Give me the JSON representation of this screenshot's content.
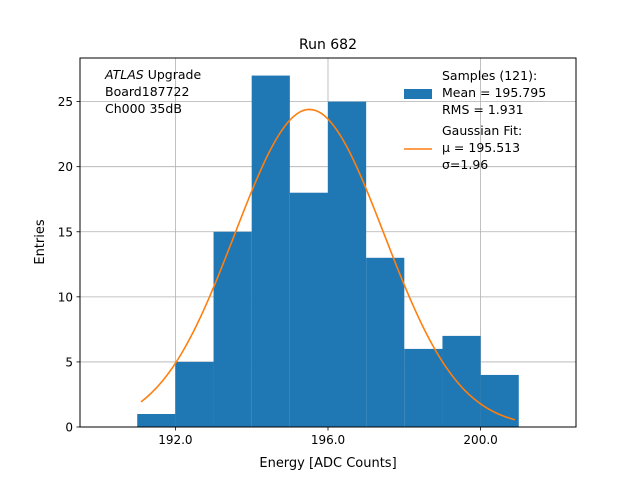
{
  "chart_data": {
    "type": "bar",
    "title": "Run 682",
    "xlabel": "Energy [ADC Counts]",
    "ylabel": "Entries",
    "xlim": [
      189.5,
      202.5
    ],
    "ylim": [
      0,
      28.35
    ],
    "grid": true,
    "xticks": [
      192.0,
      196.0,
      200.0
    ],
    "xtick_labels": [
      "192.0",
      "196.0",
      "200.0"
    ],
    "yticks": [
      0,
      5,
      10,
      15,
      20,
      25
    ],
    "ytick_labels": [
      "0",
      "5",
      "10",
      "15",
      "20",
      "25"
    ],
    "histogram": {
      "name": "Samples (121):",
      "bins": [
        {
          "x0": 191,
          "x1": 192,
          "count": 1
        },
        {
          "x0": 192,
          "x1": 193,
          "count": 5
        },
        {
          "x0": 193,
          "x1": 194,
          "count": 15
        },
        {
          "x0": 194,
          "x1": 195,
          "count": 27
        },
        {
          "x0": 195,
          "x1": 196,
          "count": 18
        },
        {
          "x0": 196,
          "x1": 197,
          "count": 25
        },
        {
          "x0": 197,
          "x1": 198,
          "count": 13
        },
        {
          "x0": 198,
          "x1": 199,
          "count": 6
        },
        {
          "x0": 199,
          "x1": 200,
          "count": 7
        },
        {
          "x0": 200,
          "x1": 201,
          "count": 4
        }
      ],
      "color": "#1f77b4"
    },
    "fit": {
      "name": "Gaussian Fit:",
      "mu": 195.513,
      "sigma": 1.96,
      "amplitude": 24.4,
      "x_range": [
        191.1,
        200.9
      ],
      "color": "#ff7f0e"
    },
    "legend": {
      "placement": "top-right",
      "entries": [
        {
          "lines": [
            "Samples (121):",
            " Mean = 195.795",
            " RMS = 1.931"
          ],
          "kind": "patch",
          "color": "#1f77b4"
        },
        {
          "lines": [
            "Gaussian Fit:",
            " μ = 195.513",
            " σ=1.96"
          ],
          "kind": "line",
          "color": "#ff7f0e"
        }
      ]
    },
    "annotation": {
      "placement": "top-left",
      "lines": [
        {
          "italic": "ATLAS",
          "text": " Upgrade"
        },
        {
          "italic": "",
          "text": " Board187722"
        },
        {
          "italic": "",
          "text": " Ch000 35dB"
        }
      ]
    }
  }
}
